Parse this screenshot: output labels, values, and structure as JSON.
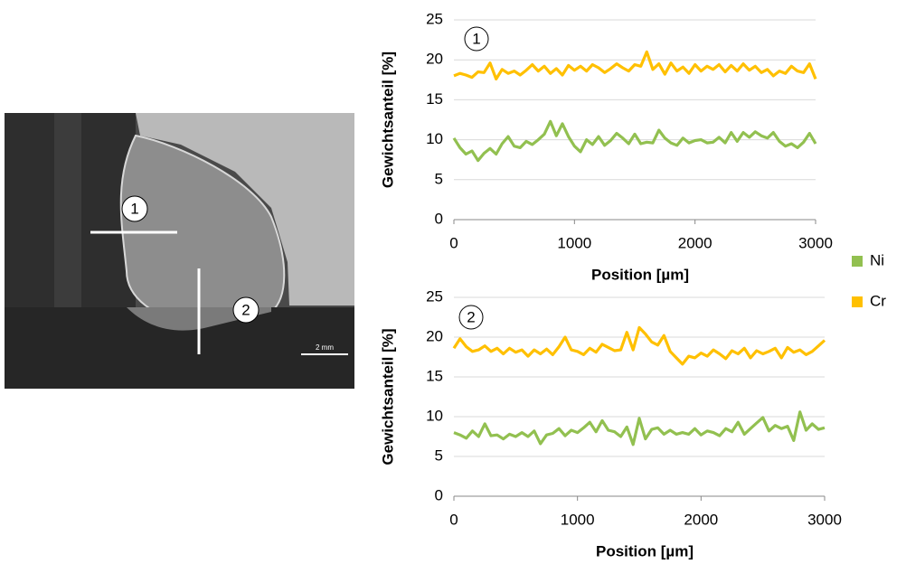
{
  "image": {
    "markers": [
      "1",
      "2"
    ],
    "scale_bar": "2 mm"
  },
  "chart_data": [
    {
      "type": "line",
      "annotation": "1",
      "y_label": "Gewichtsanteil [%]",
      "x_label": "Position [µm]",
      "xlim": [
        0,
        3000
      ],
      "xticks": [
        0,
        1000,
        2000,
        3000
      ],
      "ylim": [
        0,
        25
      ],
      "yticks": [
        0,
        5,
        10,
        15,
        20,
        25
      ],
      "grid": true,
      "x": [
        0,
        50,
        100,
        150,
        200,
        250,
        300,
        350,
        400,
        450,
        500,
        550,
        600,
        650,
        700,
        750,
        800,
        850,
        900,
        950,
        1000,
        1050,
        1100,
        1150,
        1200,
        1250,
        1300,
        1350,
        1400,
        1450,
        1500,
        1550,
        1600,
        1650,
        1700,
        1750,
        1800,
        1850,
        1900,
        1950,
        2000,
        2050,
        2100,
        2150,
        2200,
        2250,
        2300,
        2350,
        2400,
        2450,
        2500,
        2550,
        2600,
        2650,
        2700,
        2750,
        2800,
        2850,
        2900,
        2950,
        3000
      ],
      "series": [
        {
          "name": "Ni",
          "color": "#92c050",
          "values": [
            10.2,
            9,
            8.2,
            8.6,
            7.4,
            8.3,
            8.9,
            8.2,
            9.5,
            10.4,
            9.2,
            9,
            9.8,
            9.4,
            10,
            10.7,
            12.3,
            10.5,
            12,
            10.4,
            9.2,
            8.5,
            10,
            9.4,
            10.4,
            9.3,
            9.9,
            10.8,
            10.2,
            9.5,
            10.7,
            9.5,
            9.7,
            9.6,
            11.2,
            10.2,
            9.6,
            9.3,
            10.2,
            9.6,
            9.9,
            10,
            9.6,
            9.7,
            10.3,
            9.6,
            10.9,
            9.8,
            10.9,
            10.3,
            11,
            10.5,
            10.2,
            10.9,
            9.8,
            9.2,
            9.5,
            9,
            9.7,
            10.8,
            9.5
          ]
        },
        {
          "name": "Cr",
          "color": "#ffc000",
          "values": [
            18,
            18.3,
            18.1,
            17.8,
            18.5,
            18.4,
            19.6,
            17.6,
            18.8,
            18.3,
            18.6,
            18.1,
            18.7,
            19.4,
            18.6,
            19.2,
            18.3,
            18.9,
            18.1,
            19.3,
            18.7,
            19.2,
            18.6,
            19.4,
            19,
            18.4,
            18.9,
            19.5,
            19,
            18.6,
            19.4,
            19.2,
            21,
            18.8,
            19.5,
            18.2,
            19.6,
            18.6,
            19.1,
            18.3,
            19.4,
            18.6,
            19.2,
            18.8,
            19.4,
            18.5,
            19.3,
            18.6,
            19.5,
            18.7,
            19.2,
            18.4,
            18.8,
            18,
            18.6,
            18.3,
            19.2,
            18.6,
            18.4,
            19.5,
            17.6
          ]
        }
      ]
    },
    {
      "type": "line",
      "annotation": "2",
      "y_label": "Gewichtsanteil [%]",
      "x_label": "Position [µm]",
      "xlim": [
        0,
        3000
      ],
      "xticks": [
        0,
        1000,
        2000,
        3000
      ],
      "ylim": [
        0,
        25
      ],
      "yticks": [
        0,
        5,
        10,
        15,
        20,
        25
      ],
      "grid": true,
      "x": [
        0,
        50,
        100,
        150,
        200,
        250,
        300,
        350,
        400,
        450,
        500,
        550,
        600,
        650,
        700,
        750,
        800,
        850,
        900,
        950,
        1000,
        1050,
        1100,
        1150,
        1200,
        1250,
        1300,
        1350,
        1400,
        1450,
        1500,
        1550,
        1600,
        1650,
        1700,
        1750,
        1800,
        1850,
        1900,
        1950,
        2000,
        2050,
        2100,
        2150,
        2200,
        2250,
        2300,
        2350,
        2400,
        2450,
        2500,
        2550,
        2600,
        2650,
        2700,
        2750,
        2800,
        2850,
        2900,
        2950,
        3000
      ],
      "series": [
        {
          "color": "#92c050",
          "values": [
            8,
            7.7,
            7.3,
            8.2,
            7.5,
            9.1,
            7.6,
            7.7,
            7.2,
            7.8,
            7.5,
            8,
            7.5,
            8.2,
            6.6,
            7.7,
            7.9,
            8.5,
            7.6,
            8.3,
            8,
            8.6,
            9.3,
            8.1,
            9.5,
            8.3,
            8.1,
            7.5,
            8.7,
            6.5,
            9.8,
            7.2,
            8.4,
            8.6,
            7.8,
            8.3,
            7.8,
            8,
            7.8,
            8.5,
            7.7,
            8.2,
            8,
            7.6,
            8.5,
            8.1,
            9.3,
            7.8,
            8.5,
            9.2,
            9.9,
            8.2,
            8.9,
            8.5,
            8.8,
            7,
            10.6,
            8.3,
            9.1,
            8.4,
            8.6
          ]
        },
        {
          "color": "#ffc000",
          "values": [
            18.6,
            19.8,
            18.8,
            18.2,
            18.4,
            18.9,
            18.2,
            18.6,
            17.9,
            18.6,
            18.1,
            18.4,
            17.6,
            18.4,
            17.9,
            18.5,
            17.8,
            18.8,
            20,
            18.4,
            18.2,
            17.8,
            18.6,
            18.1,
            19.1,
            18.7,
            18.3,
            18.4,
            20.6,
            18.4,
            21.2,
            20.4,
            19.4,
            19,
            20.2,
            18.2,
            17.4,
            16.6,
            17.6,
            17.4,
            18,
            17.6,
            18.4,
            17.9,
            17.3,
            18.3,
            17.9,
            18.6,
            17.4,
            18.3,
            17.9,
            18.2,
            18.6,
            17.4,
            18.7,
            18.1,
            18.4,
            17.8,
            18.2,
            18.9,
            19.6
          ]
        }
      ]
    }
  ]
}
